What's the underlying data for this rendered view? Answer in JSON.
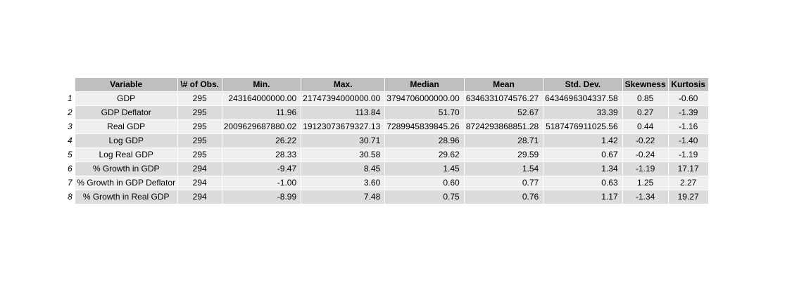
{
  "table": {
    "columns": [
      "Variable",
      "\\# of Obs.",
      "Min.",
      "Max.",
      "Median",
      "Mean",
      "Std. Dev.",
      "Skewness",
      "Kurtosis"
    ],
    "rows": [
      {
        "index": "1",
        "cells": [
          "GDP",
          "295",
          "243164000000.00",
          "21747394000000.00",
          "3794706000000.00",
          "6346331074576.27",
          "6434696304337.58",
          "0.85",
          "-0.60"
        ]
      },
      {
        "index": "2",
        "cells": [
          "GDP Deflator",
          "295",
          "11.96",
          "113.84",
          "51.70",
          "52.67",
          "33.39",
          "0.27",
          "-1.39"
        ]
      },
      {
        "index": "3",
        "cells": [
          "Real GDP",
          "295",
          "2009629687880.02",
          "19123073679327.13",
          "7289945839845.26",
          "8724293868851.28",
          "5187476911025.56",
          "0.44",
          "-1.16"
        ]
      },
      {
        "index": "4",
        "cells": [
          "Log GDP",
          "295",
          "26.22",
          "30.71",
          "28.96",
          "28.71",
          "1.42",
          "-0.22",
          "-1.40"
        ]
      },
      {
        "index": "5",
        "cells": [
          "Log Real GDP",
          "295",
          "28.33",
          "30.58",
          "29.62",
          "29.59",
          "0.67",
          "-0.24",
          "-1.19"
        ]
      },
      {
        "index": "6",
        "cells": [
          "% Growth in GDP",
          "294",
          "-9.47",
          "8.45",
          "1.45",
          "1.54",
          "1.34",
          "-1.19",
          "17.17"
        ]
      },
      {
        "index": "7",
        "cells": [
          "% Growth in GDP Deflator",
          "294",
          "-1.00",
          "3.60",
          "0.60",
          "0.77",
          "0.63",
          "1.25",
          "2.27"
        ]
      },
      {
        "index": "8",
        "cells": [
          "% Growth in Real GDP",
          "294",
          "-8.99",
          "7.48",
          "0.75",
          "0.76",
          "1.17",
          "-1.34",
          "19.27"
        ]
      }
    ]
  }
}
